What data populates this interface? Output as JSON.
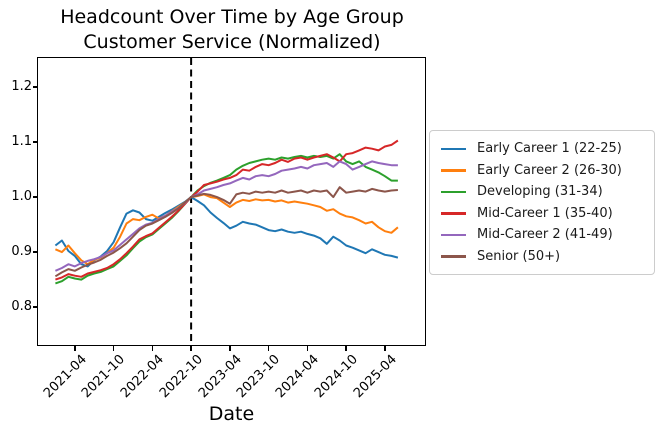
{
  "figure": {
    "title_line1": "Headcount Over Time by Age Group",
    "title_line2": "Customer Service (Normalized)",
    "xlabel": "Date"
  },
  "chart_data": {
    "type": "line",
    "title": "Headcount Over Time by Age Group",
    "subtitle": "Customer Service (Normalized)",
    "xlabel": "Date",
    "ylabel": "",
    "grid": false,
    "legend_position": "right-outside",
    "x": [
      "2021-01",
      "2021-02",
      "2021-03",
      "2021-04",
      "2021-05",
      "2021-06",
      "2021-07",
      "2021-08",
      "2021-09",
      "2021-10",
      "2021-11",
      "2021-12",
      "2022-01",
      "2022-02",
      "2022-03",
      "2022-04",
      "2022-05",
      "2022-06",
      "2022-07",
      "2022-08",
      "2022-09",
      "2022-10",
      "2022-11",
      "2022-12",
      "2023-01",
      "2023-02",
      "2023-03",
      "2023-04",
      "2023-05",
      "2023-06",
      "2023-07",
      "2023-08",
      "2023-09",
      "2023-10",
      "2023-11",
      "2023-12",
      "2024-01",
      "2024-02",
      "2024-03",
      "2024-04",
      "2024-05",
      "2024-06",
      "2024-07",
      "2024-08",
      "2024-09",
      "2024-10",
      "2024-11",
      "2024-12",
      "2025-01",
      "2025-02",
      "2025-03",
      "2025-04",
      "2025-05",
      "2025-06"
    ],
    "xticks": [
      "2021-04",
      "2021-10",
      "2022-04",
      "2022-10",
      "2023-04",
      "2023-10",
      "2024-04",
      "2024-10",
      "2025-04"
    ],
    "yticks": [
      0.8,
      0.9,
      1.0,
      1.1,
      1.2
    ],
    "ylim": [
      0.731,
      1.253
    ],
    "xlim_index": [
      -2.7,
      57.2
    ],
    "annotation_vline": {
      "x": "2022-10",
      "style": "dashed",
      "color": "#000000"
    },
    "series": [
      {
        "name": "Early Career 1 (22-25)",
        "color": "#1f77b4",
        "values": [
          0.912,
          0.921,
          0.902,
          0.893,
          0.878,
          0.874,
          0.885,
          0.892,
          0.902,
          0.918,
          0.945,
          0.97,
          0.976,
          0.972,
          0.96,
          0.957,
          0.964,
          0.971,
          0.977,
          0.984,
          0.991,
          1.0,
          0.993,
          0.985,
          0.972,
          0.962,
          0.953,
          0.943,
          0.948,
          0.955,
          0.952,
          0.95,
          0.945,
          0.94,
          0.938,
          0.941,
          0.937,
          0.935,
          0.937,
          0.933,
          0.93,
          0.925,
          0.915,
          0.928,
          0.921,
          0.912,
          0.908,
          0.903,
          0.898,
          0.905,
          0.9,
          0.895,
          0.893,
          0.89
        ]
      },
      {
        "name": "Early Career 2 (26-30)",
        "color": "#ff7f0e",
        "values": [
          0.905,
          0.9,
          0.912,
          0.898,
          0.885,
          0.878,
          0.886,
          0.89,
          0.898,
          0.908,
          0.928,
          0.952,
          0.96,
          0.958,
          0.964,
          0.968,
          0.961,
          0.966,
          0.974,
          0.982,
          0.99,
          1.0,
          1.002,
          1.005,
          1.0,
          0.998,
          0.99,
          0.982,
          0.99,
          0.995,
          0.993,
          0.996,
          0.994,
          0.995,
          0.992,
          0.994,
          0.99,
          0.992,
          0.99,
          0.988,
          0.985,
          0.982,
          0.975,
          0.978,
          0.97,
          0.965,
          0.963,
          0.958,
          0.952,
          0.955,
          0.945,
          0.938,
          0.935,
          0.945
        ]
      },
      {
        "name": "Developing (31-34)",
        "color": "#2ca02c",
        "values": [
          0.843,
          0.847,
          0.855,
          0.852,
          0.85,
          0.857,
          0.861,
          0.864,
          0.869,
          0.874,
          0.884,
          0.894,
          0.907,
          0.919,
          0.927,
          0.932,
          0.942,
          0.952,
          0.962,
          0.974,
          0.987,
          1.0,
          1.012,
          1.02,
          1.026,
          1.03,
          1.035,
          1.04,
          1.05,
          1.057,
          1.062,
          1.065,
          1.068,
          1.07,
          1.068,
          1.072,
          1.07,
          1.073,
          1.075,
          1.072,
          1.075,
          1.073,
          1.075,
          1.07,
          1.078,
          1.065,
          1.06,
          1.065,
          1.055,
          1.05,
          1.045,
          1.038,
          1.03,
          1.03
        ]
      },
      {
        "name": "Mid-Career 1 (35-40)",
        "color": "#d62728",
        "values": [
          0.85,
          0.854,
          0.86,
          0.857,
          0.855,
          0.861,
          0.864,
          0.867,
          0.871,
          0.878,
          0.887,
          0.898,
          0.91,
          0.923,
          0.929,
          0.934,
          0.944,
          0.954,
          0.964,
          0.975,
          0.987,
          1.0,
          1.01,
          1.022,
          1.025,
          1.028,
          1.032,
          1.035,
          1.04,
          1.05,
          1.048,
          1.055,
          1.06,
          1.058,
          1.062,
          1.068,
          1.064,
          1.07,
          1.072,
          1.068,
          1.072,
          1.075,
          1.078,
          1.072,
          1.065,
          1.078,
          1.08,
          1.085,
          1.09,
          1.088,
          1.085,
          1.092,
          1.095,
          1.103
        ]
      },
      {
        "name": "Mid-Career 2 (41-49)",
        "color": "#9467bd",
        "values": [
          0.866,
          0.871,
          0.878,
          0.874,
          0.88,
          0.884,
          0.887,
          0.891,
          0.898,
          0.903,
          0.913,
          0.923,
          0.933,
          0.943,
          0.95,
          0.953,
          0.96,
          0.966,
          0.973,
          0.98,
          0.989,
          1.0,
          1.005,
          1.012,
          1.015,
          1.018,
          1.022,
          1.025,
          1.03,
          1.035,
          1.032,
          1.038,
          1.04,
          1.038,
          1.042,
          1.048,
          1.05,
          1.052,
          1.055,
          1.052,
          1.058,
          1.06,
          1.062,
          1.055,
          1.065,
          1.06,
          1.05,
          1.055,
          1.06,
          1.065,
          1.062,
          1.06,
          1.058,
          1.058
        ]
      },
      {
        "name": "Senior (50+)",
        "color": "#8c564b",
        "values": [
          0.856,
          0.863,
          0.869,
          0.866,
          0.872,
          0.877,
          0.881,
          0.886,
          0.893,
          0.899,
          0.907,
          0.916,
          0.928,
          0.94,
          0.948,
          0.952,
          0.958,
          0.964,
          0.971,
          0.979,
          0.99,
          1.0,
          1.003,
          1.006,
          1.004,
          1.0,
          0.995,
          0.988,
          1.005,
          1.008,
          1.006,
          1.01,
          1.008,
          1.01,
          1.008,
          1.012,
          1.008,
          1.01,
          1.012,
          1.008,
          1.012,
          1.01,
          1.012,
          1.0,
          1.018,
          1.008,
          1.01,
          1.012,
          1.01,
          1.015,
          1.012,
          1.01,
          1.012,
          1.013
        ]
      }
    ]
  }
}
